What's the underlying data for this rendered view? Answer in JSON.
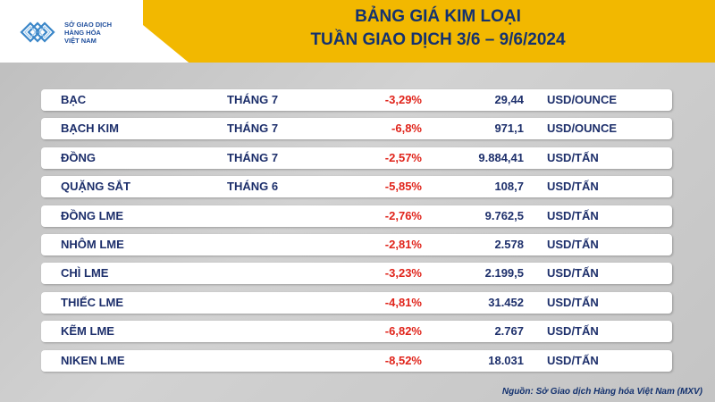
{
  "header": {
    "logo_text_line1": "SỞ GIAO DỊCH",
    "logo_text_line2": "HÀNG HÓA",
    "logo_text_line3": "VIỆT NAM",
    "title_line1": "BẢNG GIÁ KIM LOẠI",
    "title_line2": "TUẦN GIAO DỊCH 3/6 – 9/6/2024"
  },
  "rows": [
    {
      "name": "BẠC",
      "month": "THÁNG 7",
      "change": "-3,29%",
      "price": "29,44",
      "unit": "USD/OUNCE"
    },
    {
      "name": "BẠCH KIM",
      "month": "THÁNG 7",
      "change": "-6,8%",
      "price": "971,1",
      "unit": "USD/OUNCE"
    },
    {
      "name": "ĐỒNG",
      "month": "THÁNG 7",
      "change": "-2,57%",
      "price": "9.884,41",
      "unit": "USD/TẤN"
    },
    {
      "name": "QUẶNG SẮT",
      "month": "THÁNG 6",
      "change": "-5,85%",
      "price": "108,7",
      "unit": "USD/TẤN"
    },
    {
      "name": "ĐỒNG LME",
      "month": "",
      "change": "-2,76%",
      "price": "9.762,5",
      "unit": "USD/TẤN"
    },
    {
      "name": "NHÔM LME",
      "month": "",
      "change": "-2,81%",
      "price": "2.578",
      "unit": "USD/TẤN"
    },
    {
      "name": "CHÌ LME",
      "month": "",
      "change": "-3,23%",
      "price": "2.199,5",
      "unit": "USD/TẤN"
    },
    {
      "name": "THIẾC LME",
      "month": "",
      "change": "-4,81%",
      "price": "31.452",
      "unit": "USD/TẤN"
    },
    {
      "name": "KẼM LME",
      "month": "",
      "change": "-6,82%",
      "price": "2.767",
      "unit": "USD/TẤN"
    },
    {
      "name": "NIKEN LME",
      "month": "",
      "change": "-8,52%",
      "price": "18.031",
      "unit": "USD/TẤN"
    }
  ],
  "source": "Nguồn: Sở Giao dịch Hàng hóa Việt Nam (MXV)",
  "colors": {
    "accent": "#f2b800",
    "title": "#14326f",
    "negative": "#e0241b"
  }
}
